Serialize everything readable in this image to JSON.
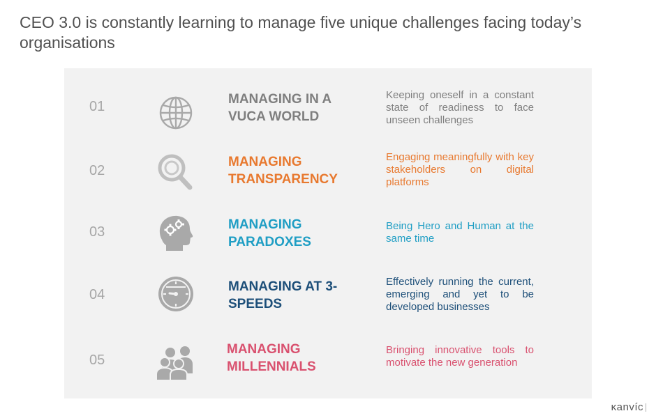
{
  "title": "CEO 3.0 is constantly learning to manage five unique challenges facing today’s organisations",
  "logo": "κanvíc",
  "colors": {
    "gray_heading": "#7f7f7f",
    "orange": "#e8792f",
    "teal": "#1f9ec4",
    "navy": "#1d4f79",
    "pink": "#d9516f",
    "icon_gray": "#a9a9a9"
  },
  "challenges": [
    {
      "num": "01",
      "heading": "MANAGING IN A VUCA WORLD",
      "desc": "Keeping oneself in a constant state of readiness to face unseen challenges",
      "icon": "globe-icon"
    },
    {
      "num": "02",
      "heading": "MANAGING TRANSPARENCY",
      "desc": "Engaging meaningfully with key stakeholders on digital platforms",
      "icon": "magnifier-icon"
    },
    {
      "num": "03",
      "heading": "MANAGING PARADOXES",
      "desc": "Being Hero and Human at the same time",
      "icon": "head-gears-icon"
    },
    {
      "num": "04",
      "heading": "MANAGING AT 3-SPEEDS",
      "desc": "Effectively running the current, emerging and yet to be developed businesses",
      "icon": "speedometer-icon"
    },
    {
      "num": "05",
      "heading": "MANAGING MILLENNIALS",
      "desc": "Bringing innovative tools to motivate the new generation",
      "icon": "people-group-icon"
    }
  ]
}
